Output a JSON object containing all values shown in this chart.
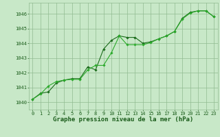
{
  "title": "Graphe pression niveau de la mer (hPa)",
  "x_ticks": [
    0,
    1,
    2,
    3,
    4,
    5,
    6,
    7,
    8,
    9,
    10,
    11,
    12,
    13,
    14,
    15,
    16,
    17,
    18,
    19,
    20,
    21,
    22,
    23
  ],
  "y_ticks": [
    1040,
    1041,
    1042,
    1043,
    1044,
    1045,
    1046
  ],
  "ylim": [
    1039.5,
    1046.75
  ],
  "xlim": [
    -0.5,
    23.5
  ],
  "series1": {
    "x": [
      0,
      1,
      2,
      3,
      4,
      5,
      6,
      7,
      8,
      9,
      10,
      11,
      12,
      13,
      14,
      15,
      16,
      17,
      18,
      19,
      20,
      21,
      22,
      23
    ],
    "y": [
      1040.2,
      1040.6,
      1040.7,
      1041.3,
      1041.5,
      1041.6,
      1041.6,
      1042.4,
      1042.2,
      1043.6,
      1044.2,
      1044.5,
      1044.4,
      1044.4,
      1044.0,
      1044.1,
      1044.3,
      1044.5,
      1044.8,
      1045.7,
      1046.1,
      1046.2,
      1046.2,
      1045.8
    ],
    "color": "#1a6b1a",
    "linewidth": 0.8,
    "marker": "D",
    "markersize": 1.8
  },
  "series2": {
    "x": [
      0,
      1,
      2,
      3,
      4,
      5,
      6,
      7,
      8,
      9,
      10,
      11,
      12,
      13,
      14,
      15,
      16,
      17,
      18,
      19,
      20,
      21,
      22,
      23
    ],
    "y": [
      1040.2,
      1040.55,
      1041.1,
      1041.4,
      1041.5,
      1041.55,
      1041.55,
      1042.2,
      1042.5,
      1042.5,
      1043.35,
      1044.5,
      1043.9,
      1043.9,
      1043.9,
      1044.05,
      1044.3,
      1044.5,
      1044.8,
      1045.65,
      1046.05,
      1046.2,
      1046.2,
      1045.8
    ],
    "color": "#2aaa2a",
    "linewidth": 0.8,
    "marker": "D",
    "markersize": 1.8
  },
  "bg_color": "#c8e8c8",
  "plot_bg_color": "#c8e8c8",
  "grid_color": "#90bb90",
  "text_color": "#1a5c1a",
  "tick_fontsize": 5.0,
  "label_fontsize": 6.5
}
